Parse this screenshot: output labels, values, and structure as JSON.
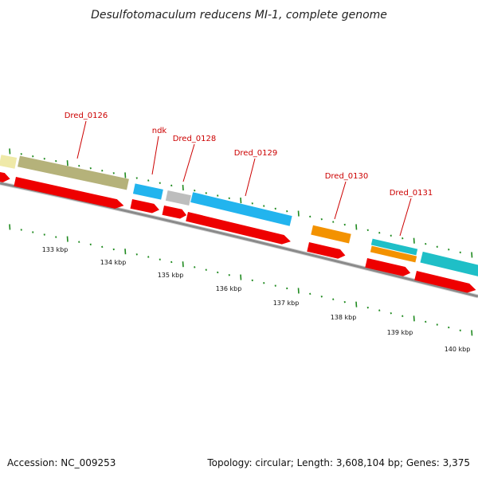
{
  "title": "Desulfotomaculum reducens MI-1, complete genome",
  "footer": {
    "accession": "Accession: NC_009253",
    "summary": "Topology: circular; Length: 3,608,104 bp; Genes: 3,375"
  },
  "gene_labels": [
    "Dred_0126",
    "ndk",
    "Dred_0128",
    "Dred_0129",
    "Dred_0130",
    "Dred_0131"
  ],
  "kbp_labels": [
    "133 kbp",
    "134 kbp",
    "135 kbp",
    "136 kbp",
    "137 kbp",
    "138 kbp",
    "139 kbp",
    "140 kbp"
  ],
  "colors": {
    "cds": "#ee0000",
    "khaki": "#b5b27a",
    "pale_yellow": "#efe9a8",
    "sky": "#22b4ee",
    "gray": "#bdbdbd",
    "orange": "#f39200",
    "teal": "#1fbfc7",
    "backbone": "#8a8a8a",
    "tick": "#1f8a1f"
  }
}
